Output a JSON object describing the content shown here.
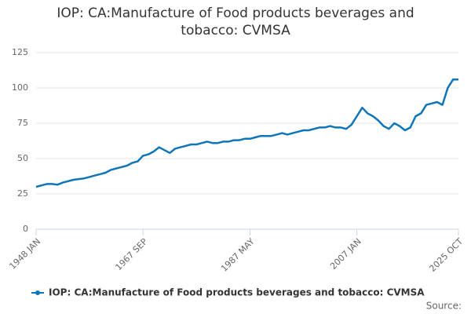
{
  "chart_data": {
    "type": "line",
    "title": "IOP: CA:Manufacture of Food products beverages and tobacco: CVMSA",
    "source": "Source:",
    "categories": [
      "1948 JAN",
      null,
      null,
      null,
      null,
      null,
      null,
      null,
      null,
      null,
      null,
      null,
      null,
      null,
      null,
      null,
      null,
      null,
      null,
      null,
      "1967 SEP",
      null,
      null,
      null,
      null,
      null,
      null,
      null,
      null,
      null,
      null,
      null,
      null,
      null,
      null,
      null,
      null,
      null,
      null,
      null,
      "1987 MAY",
      null,
      null,
      null,
      null,
      null,
      null,
      null,
      null,
      null,
      null,
      null,
      null,
      null,
      null,
      null,
      null,
      null,
      null,
      null,
      "2007 JAN",
      null,
      null,
      null,
      null,
      null,
      null,
      null,
      null,
      null,
      null,
      null,
      null,
      null,
      null,
      null,
      null,
      null,
      null,
      "2025 OCT"
    ],
    "series": [
      {
        "name": "IOP: CA:Manufacture of Food products beverages and tobacco: CVMSA",
        "color": "#0e76b8",
        "values": [
          30,
          31,
          32,
          32,
          31.5,
          33,
          34,
          35,
          35.5,
          36,
          37,
          38,
          39,
          40,
          42,
          43,
          44,
          45,
          47,
          48,
          52,
          53,
          55,
          58,
          56,
          54,
          57,
          58,
          59,
          60,
          60,
          61,
          62,
          61,
          61,
          62,
          62,
          63,
          63,
          64,
          64,
          65,
          66,
          66,
          66,
          67,
          68,
          67,
          68,
          69,
          70,
          70,
          71,
          72,
          72,
          73,
          72,
          72,
          71,
          74,
          80,
          86,
          82,
          80,
          77,
          73,
          71,
          75,
          73,
          70,
          72,
          80,
          82,
          88,
          89,
          90,
          88,
          100,
          106,
          106
        ]
      }
    ],
    "ylim": [
      0,
      125
    ],
    "yticks": [
      0,
      25,
      50,
      75,
      100,
      125
    ],
    "grid": true
  }
}
